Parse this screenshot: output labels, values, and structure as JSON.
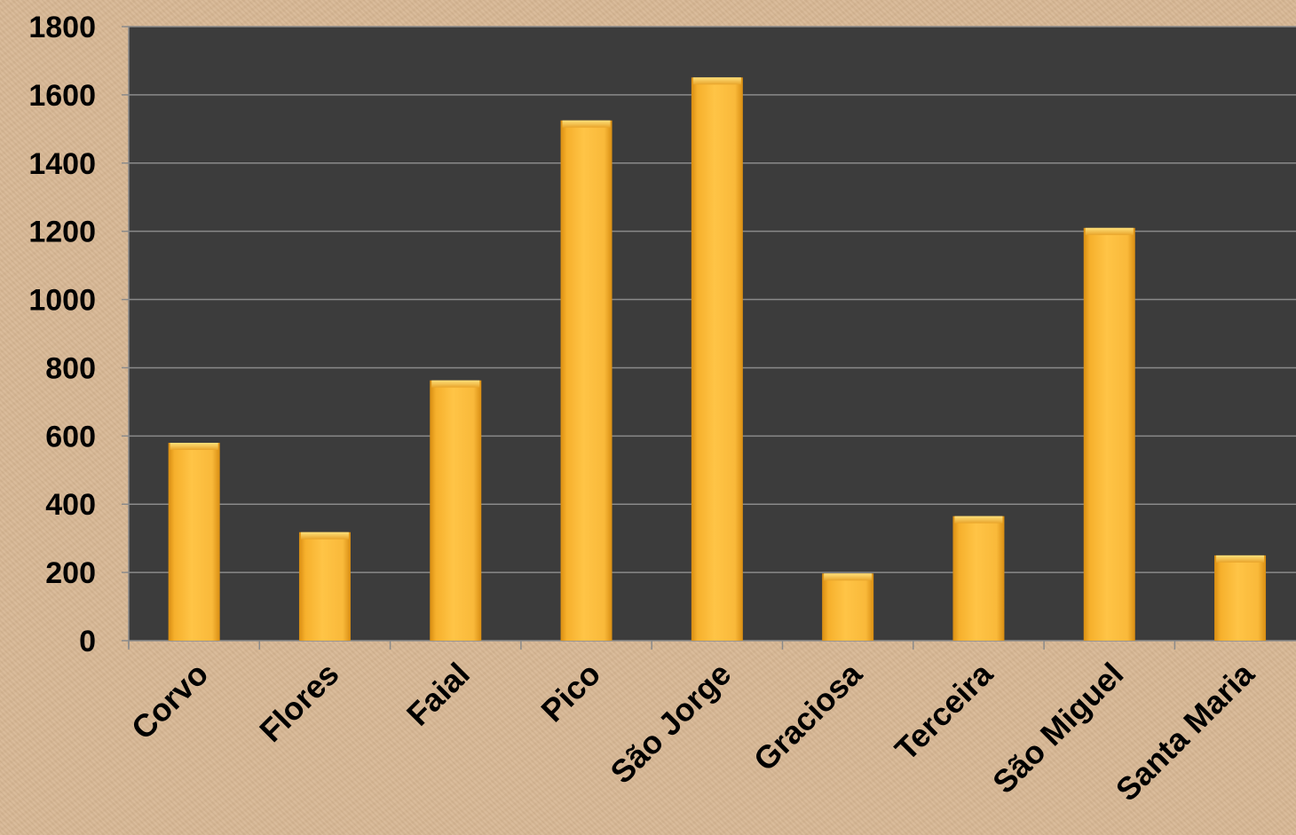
{
  "chart_data": {
    "type": "bar",
    "title": "",
    "xlabel": "",
    "ylabel": "",
    "categories": [
      "Corvo",
      "Flores",
      "Faial",
      "Pico",
      "São Jorge",
      "Graciosa",
      "Terceira",
      "São Miguel",
      "Santa Maria"
    ],
    "values": [
      580,
      318,
      763,
      1525,
      1651,
      197,
      365,
      1210,
      250
    ],
    "ylim": [
      0,
      1800
    ],
    "yticks": [
      "0",
      "200",
      "400",
      "600",
      "800",
      "1000",
      "1200",
      "1400",
      "1600",
      "1800"
    ],
    "grid": true,
    "legend": "none"
  },
  "colors": {
    "plot_background": "#3c3c3c",
    "bar_fill": "#f9b93a",
    "bar_highlight": "#ffd86a",
    "bar_shadow": "#d98e12",
    "gridline": "#8a8a8a",
    "page_background": "#d8b895",
    "text": "#000000"
  }
}
